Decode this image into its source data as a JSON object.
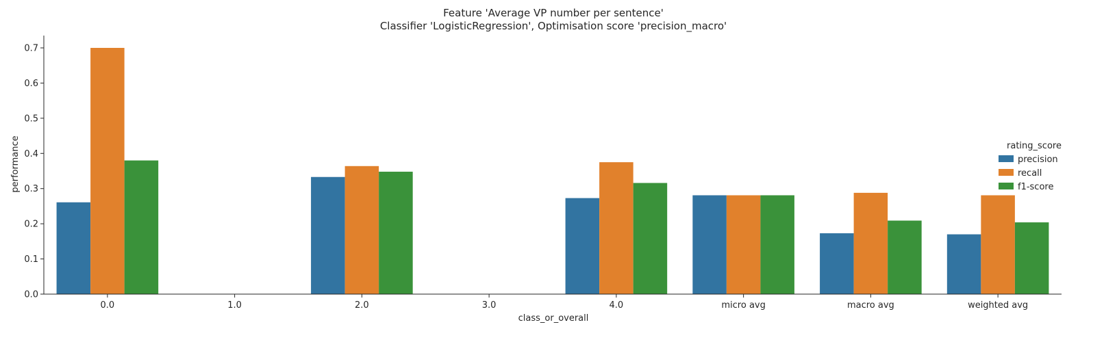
{
  "chart_data": {
    "type": "bar",
    "title": "Feature 'Average VP number per sentence'",
    "subtitle": "Classifier 'LogisticRegression', Optimisation score 'precision_macro'",
    "xlabel": "class_or_overall",
    "ylabel": "performance",
    "categories": [
      "0.0",
      "1.0",
      "2.0",
      "3.0",
      "4.0",
      "micro avg",
      "macro avg",
      "weighted avg"
    ],
    "yticks": [
      "0.0",
      "0.1",
      "0.2",
      "0.3",
      "0.4",
      "0.5",
      "0.6",
      "0.7"
    ],
    "ylim": [
      0,
      0.735
    ],
    "legend_title": "rating_score",
    "legend_position": "right",
    "series": [
      {
        "name": "precision",
        "color": "#3274a1",
        "values": [
          0.261,
          0.0,
          0.333,
          0.0,
          0.273,
          0.281,
          0.173,
          0.17
        ]
      },
      {
        "name": "recall",
        "color": "#e1812c",
        "values": [
          0.7,
          0.0,
          0.364,
          0.0,
          0.375,
          0.281,
          0.288,
          0.281
        ]
      },
      {
        "name": "f1-score",
        "color": "#3a923a",
        "values": [
          0.38,
          0.0,
          0.348,
          0.0,
          0.316,
          0.281,
          0.209,
          0.204
        ]
      }
    ]
  }
}
